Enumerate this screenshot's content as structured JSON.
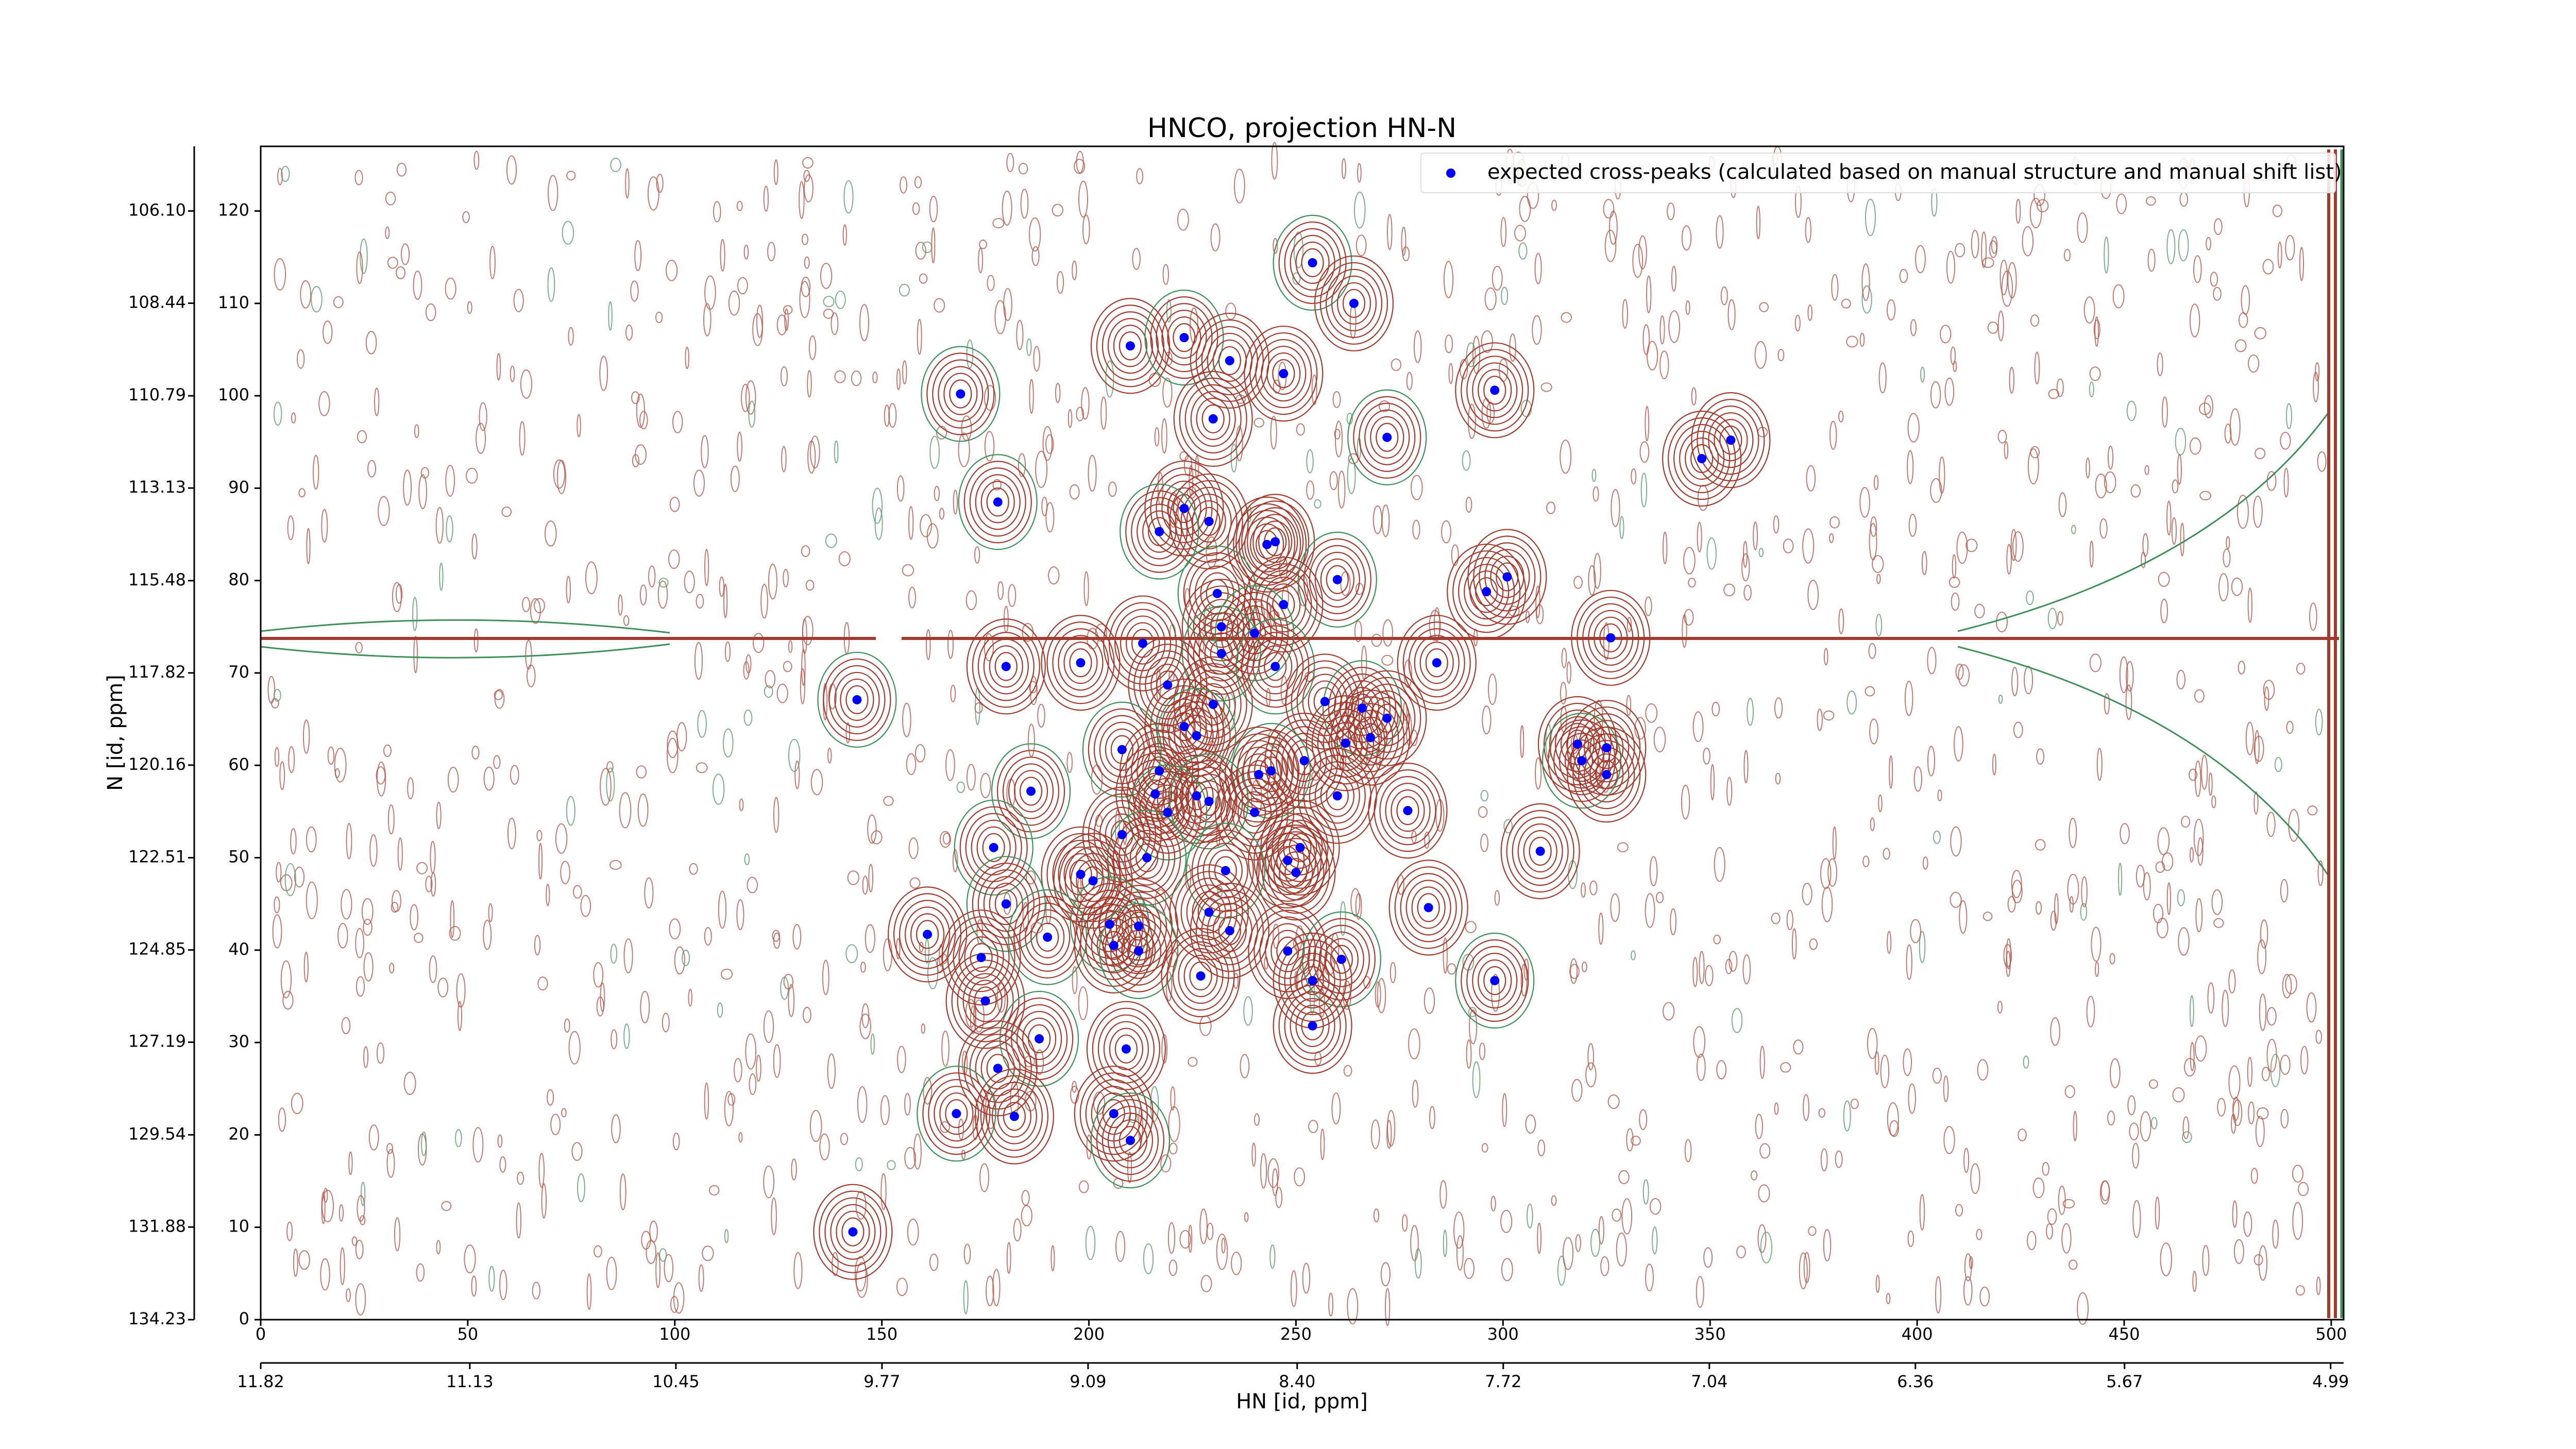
{
  "chart_data": {
    "type": "scatter",
    "title": "HNCO, projection HN-N",
    "xlabel": "HN [id, ppm]",
    "ylabel": "N [id, ppm]",
    "legend_loc": "upper right",
    "xlim": [
      0,
      503
    ],
    "ylim": [
      0,
      127
    ],
    "xticks": [
      0,
      50,
      100,
      150,
      200,
      250,
      300,
      350,
      400,
      450,
      500
    ],
    "yticks": [
      0,
      10,
      20,
      30,
      40,
      50,
      60,
      70,
      80,
      90,
      100,
      110,
      120
    ],
    "x2lim": [
      11.82,
      4.947
    ],
    "x2ticks": [
      11.82,
      11.13,
      10.45,
      9.77,
      9.09,
      {
        "value": 8.4,
        "label": "8.40"
      },
      7.72,
      7.04,
      6.36,
      5.67,
      4.99
    ],
    "y2lim": [
      134.23,
      104.46
    ],
    "y2ticks": [
      {
        "value": 106.1,
        "label": "106.10"
      },
      108.44,
      110.79,
      113.13,
      115.48,
      117.82,
      120.16,
      122.51,
      124.85,
      127.19,
      129.54,
      131.88,
      134.23
    ],
    "series": [
      {
        "name": "expected cross-peaks (calculated based on manual structure and manual shift list)",
        "color": "#0000ff",
        "x": [
          254,
          264,
          210,
          223,
          234,
          247,
          169,
          230,
          298,
          272,
          355,
          348,
          178,
          223,
          229,
          217,
          245,
          243,
          260,
          301,
          296,
          231,
          247,
          232,
          240,
          326,
          213,
          232,
          180,
          198,
          245,
          284,
          219,
          144,
          230,
          257,
          266,
          272,
          223,
          226,
          268,
          262,
          208,
          318,
          325,
          319,
          252,
          217,
          244,
          241,
          325,
          186,
          216,
          226,
          229,
          260,
          277,
          219,
          240,
          208,
          177,
          251,
          309,
          214,
          248,
          250,
          233,
          198,
          201,
          180,
          282,
          229,
          205,
          212,
          161,
          190,
          234,
          206,
          212,
          248,
          174,
          261,
          227,
          254,
          298,
          175,
          254,
          188,
          209,
          178,
          168,
          182,
          206,
          210,
          143
        ],
        "values": [
          114.4,
          110,
          105.4,
          106.3,
          103.8,
          102.4,
          100.2,
          97.5,
          100.6,
          95.5,
          95.2,
          93.2,
          88.5,
          87.8,
          86.4,
          85.3,
          84.2,
          83.9,
          80.1,
          80.4,
          78.8,
          78.6,
          77.4,
          75,
          74.3,
          73.8,
          73.2,
          72.1,
          70.7,
          71.1,
          70.7,
          71.1,
          68.7,
          67.1,
          66.6,
          66.9,
          66.2,
          65.1,
          64.2,
          63.2,
          63,
          62.4,
          61.7,
          62.3,
          61.9,
          60.5,
          60.5,
          59.4,
          59.4,
          59,
          59,
          57.2,
          56.9,
          56.7,
          56.1,
          56.7,
          55.1,
          54.9,
          54.9,
          52.5,
          51.1,
          51.1,
          50.7,
          50,
          49.7,
          48.4,
          48.6,
          48.2,
          47.5,
          45,
          44.6,
          44.1,
          42.8,
          42.6,
          41.7,
          41.4,
          42.1,
          40.5,
          39.9,
          39.9,
          39.2,
          39,
          37.2,
          36.7,
          36.7,
          34.5,
          31.8,
          30.4,
          29.3,
          27.2,
          22.3,
          22,
          22.3,
          19.4,
          9.5
        ]
      }
    ]
  }
}
